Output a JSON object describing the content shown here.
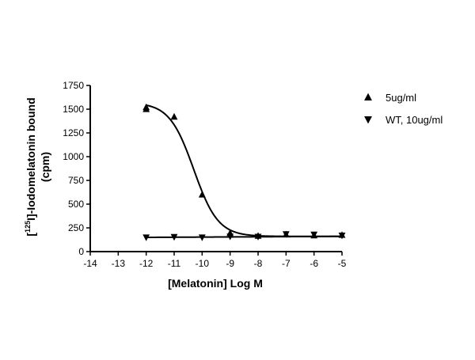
{
  "chart_data": {
    "type": "scatter",
    "title": "",
    "xlabel": "[Melatonin] Log M",
    "ylabel_parts": {
      "prefix": "[",
      "superscript": "125",
      "suffix": "I]-Iodomelatonin bound"
    },
    "ylabel_line2": "(cpm)",
    "xlim": [
      -14,
      -5
    ],
    "ylim": [
      0,
      1750
    ],
    "x_ticks": [
      -14,
      -13,
      -12,
      -11,
      -10,
      -9,
      -8,
      -7,
      -6,
      -5
    ],
    "y_ticks": [
      0,
      250,
      500,
      750,
      1000,
      1250,
      1500,
      1750
    ],
    "x_tick_labels": [
      "-14",
      "-13",
      "-12",
      "-11",
      "-10",
      "-9",
      "-8",
      "-7",
      "-6",
      "-5"
    ],
    "y_tick_labels": [
      "0",
      "250",
      "500",
      "750",
      "1000",
      "1250",
      "1500",
      "1750"
    ],
    "grid": false,
    "legend_position": "top-right",
    "series": [
      {
        "name": "5ug/ml",
        "marker": "triangle-up",
        "color": "#000000",
        "points": [
          {
            "x": -12,
            "y": 1500
          },
          {
            "x": -12,
            "y": 1520
          },
          {
            "x": -11,
            "y": 1420
          },
          {
            "x": -10,
            "y": 600
          },
          {
            "x": -9,
            "y": 195
          },
          {
            "x": -8,
            "y": 165
          },
          {
            "x": -7,
            "y": 180
          },
          {
            "x": -6,
            "y": 170
          },
          {
            "x": -5,
            "y": 175
          }
        ],
        "fit": {
          "type": "sigmoid",
          "top": 1570,
          "bottom": 160,
          "logEC50": -10.3,
          "hill": 1.0
        }
      },
      {
        "name": "WT, 10ug/ml",
        "marker": "triangle-down",
        "color": "#000000",
        "points": [
          {
            "x": -12,
            "y": 150
          },
          {
            "x": -11,
            "y": 155
          },
          {
            "x": -10,
            "y": 150
          },
          {
            "x": -9,
            "y": 160
          },
          {
            "x": -8,
            "y": 158
          },
          {
            "x": -7,
            "y": 185
          },
          {
            "x": -6,
            "y": 180
          },
          {
            "x": -5,
            "y": 170
          }
        ],
        "fit": {
          "type": "linear",
          "slope": 1.5,
          "intercept": 168
        }
      }
    ]
  }
}
